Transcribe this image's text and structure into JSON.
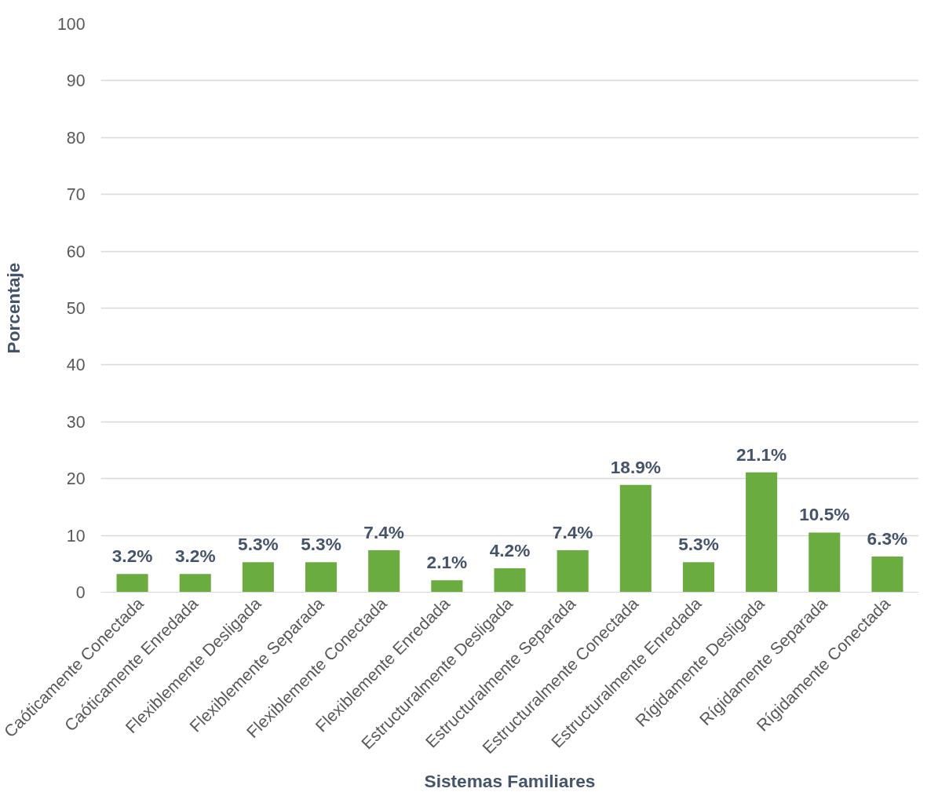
{
  "chart_data": {
    "type": "bar",
    "xlabel": "Sistemas Familiares",
    "ylabel": "Porcentaje",
    "categories": [
      "Caóticamente Conectada",
      "Caóticamente Enredada",
      "Flexiblemente Desligada",
      "Flexiblemente Separada",
      "Flexiblemente Conectada",
      "Flexiblemente Enredada",
      "Estructuralmente Desligada",
      "Estructuralmente Separada",
      "Estructuralmente Conectada",
      "Estructuralmente Enredada",
      "Rígidamente Desligada",
      "Rígidamente Separada",
      "Rígidamente Conectada"
    ],
    "values": [
      3.2,
      3.2,
      5.3,
      5.3,
      7.4,
      2.1,
      4.2,
      7.4,
      18.9,
      5.3,
      21.1,
      10.5,
      6.3
    ],
    "value_labels": [
      "3.2%",
      "3.2%",
      "5.3%",
      "5.3%",
      "7.4%",
      "2.1%",
      "4.2%",
      "7.4%",
      "18.9%",
      "5.3%",
      "21.1%",
      "10.5%",
      "6.3%"
    ],
    "color": "#6aac3f",
    "ylim": [
      0,
      100
    ],
    "yticks": [
      0,
      10,
      20,
      30,
      40,
      50,
      60,
      70,
      80,
      90,
      100
    ],
    "grid": "y"
  }
}
